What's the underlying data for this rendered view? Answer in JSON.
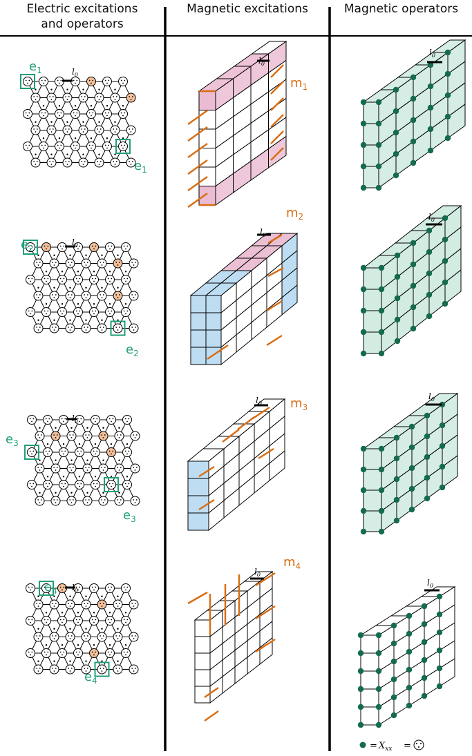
{
  "headers": {
    "col1_line1": "Electric excitations",
    "col1_line2": "and operators",
    "col2": "Magnetic excitations",
    "col3": "Magnetic operators"
  },
  "length_label": "l0",
  "length_label_main": "l",
  "length_label_sub": "0",
  "rows": [
    {
      "electric": "e1",
      "e_main": "e",
      "e_sub": "1",
      "magnetic": "m1",
      "m_main": "m",
      "m_sub": "1"
    },
    {
      "electric": "e2",
      "e_main": "e",
      "e_sub": "2",
      "magnetic": "m2",
      "m_main": "m",
      "m_sub": "2"
    },
    {
      "electric": "e3",
      "e_main": "e",
      "e_sub": "3",
      "magnetic": "m3",
      "m_main": "m",
      "m_sub": "3"
    },
    {
      "electric": "e4",
      "e_main": "e",
      "e_sub": "4",
      "magnetic": "m4",
      "m_main": "m",
      "m_sub": "4"
    }
  ],
  "legend": {
    "equals1": "=",
    "operator_main": "X",
    "operator_sub": "xx",
    "equals2": "="
  },
  "colors": {
    "electric": "#1f9e7a",
    "magnetic": "#d96d12",
    "operator": "#156b4e",
    "operator_fill": "#a6d9c6",
    "pink": "#e8b4cd",
    "blue": "#b3d7f0",
    "peach": "#f2c09a"
  }
}
